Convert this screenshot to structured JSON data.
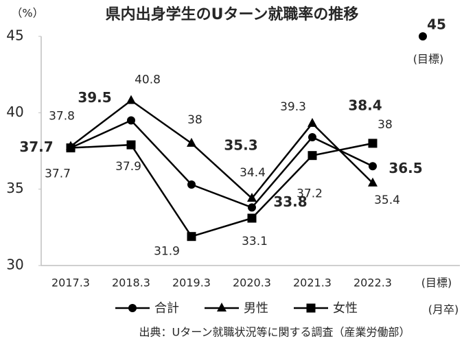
{
  "chart_data": {
    "type": "line",
    "title": "県内出身学生のUターン就職率の推移",
    "y_unit": "（%）",
    "categories": [
      "2017.3",
      "2018.3",
      "2019.3",
      "2020.3",
      "2021.3",
      "2022.3"
    ],
    "x_unit": "(月卒)",
    "series": [
      {
        "name": "合計",
        "color": "#000000",
        "label_color": "#404040",
        "marker": "circle",
        "values": [
          37.7,
          39.5,
          35.3,
          33.8,
          38.4,
          36.5
        ]
      },
      {
        "name": "男性",
        "color": "#000000",
        "label_color": "#0070c0",
        "marker": "triangle",
        "values": [
          37.8,
          40.8,
          38,
          34.4,
          39.3,
          35.4
        ]
      },
      {
        "name": "女性",
        "color": "#000000",
        "label_color": "#ff0000",
        "marker": "square",
        "values": [
          37.7,
          37.9,
          31.9,
          33.1,
          37.2,
          38
        ]
      }
    ],
    "target": {
      "category": "(目標)",
      "value": 45,
      "note": "(目標)"
    },
    "ylim": [
      30,
      45
    ],
    "yticks": [
      30,
      35,
      40,
      45
    ],
    "grid": false,
    "source": "出典：Uターン就職状況等に関する調査（産業労働部）"
  }
}
